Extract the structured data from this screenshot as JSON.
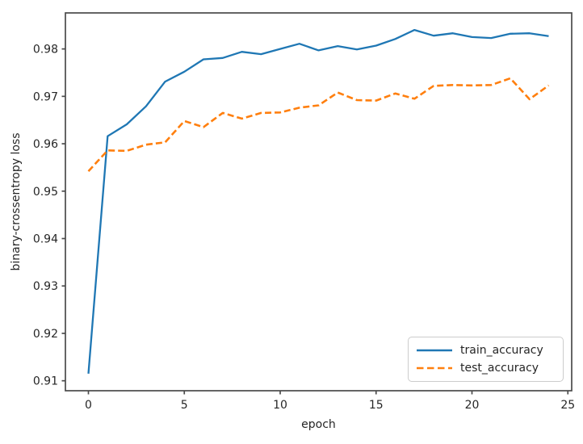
{
  "chart_data": {
    "type": "line",
    "title": "",
    "xlabel": "epoch",
    "ylabel": "binary-crossentropy loss",
    "x": [
      0,
      1,
      2,
      3,
      4,
      5,
      6,
      7,
      8,
      9,
      10,
      11,
      12,
      13,
      14,
      15,
      16,
      17,
      18,
      19,
      20,
      21,
      22,
      23,
      24
    ],
    "series": [
      {
        "name": "train_accuracy",
        "color": "#1f77b4",
        "line_style": "solid",
        "width": 2.3,
        "values": [
          0.9115,
          0.9616,
          0.9641,
          0.9679,
          0.9731,
          0.9752,
          0.9778,
          0.9781,
          0.9794,
          0.9789,
          0.98,
          0.9811,
          0.9797,
          0.9806,
          0.9799,
          0.9807,
          0.9821,
          0.984,
          0.9828,
          0.9833,
          0.9825,
          0.9823,
          0.9832,
          0.9833,
          0.9827
        ]
      },
      {
        "name": "test_accuracy",
        "color": "#ff7f0e",
        "line_style": "dashed",
        "width": 2.6,
        "values": [
          0.9542,
          0.9586,
          0.9585,
          0.9598,
          0.9603,
          0.9648,
          0.9635,
          0.9665,
          0.9653,
          0.9665,
          0.9666,
          0.9676,
          0.9681,
          0.9708,
          0.9692,
          0.9691,
          0.9706,
          0.9695,
          0.9722,
          0.9724,
          0.9723,
          0.9724,
          0.9738,
          0.9694,
          0.9723
        ]
      }
    ],
    "xlim": [
      -1.2,
      25.2
    ],
    "ylim": [
      0.9079,
      0.9876
    ],
    "xticks": [
      0,
      5,
      10,
      15,
      20,
      25
    ],
    "xtick_labels": [
      "0",
      "5",
      "10",
      "15",
      "20",
      "25"
    ],
    "yticks": [
      0.91,
      0.92,
      0.93,
      0.94,
      0.95,
      0.96,
      0.97,
      0.98
    ],
    "ytick_labels": [
      "0.91",
      "0.92",
      "0.93",
      "0.94",
      "0.95",
      "0.96",
      "0.97",
      "0.98"
    ],
    "grid": false,
    "legend_position": "lower right",
    "axis_color": "#4a4a4a",
    "text_color": "#262626"
  }
}
